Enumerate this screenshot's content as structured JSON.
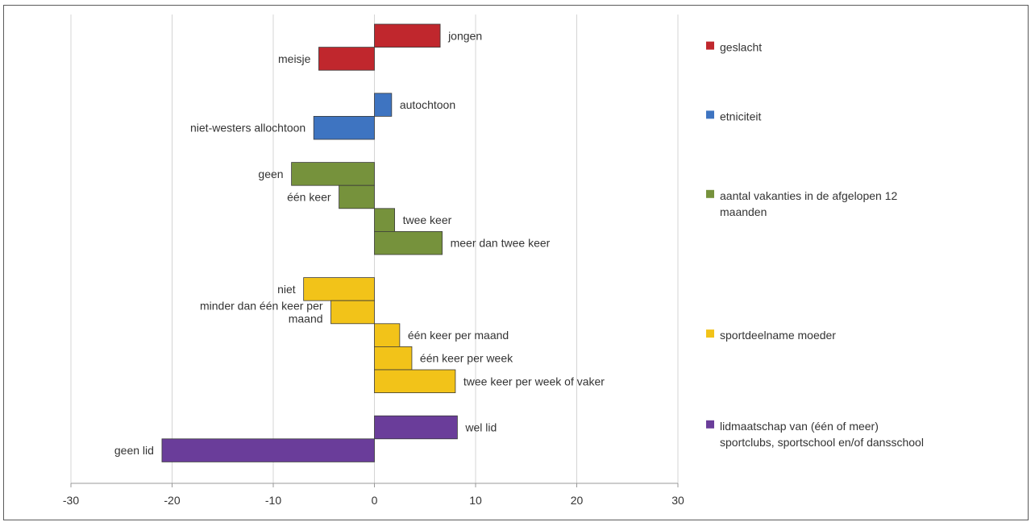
{
  "chart_data": {
    "type": "bar",
    "orientation": "horizontal",
    "xlim": [
      -30,
      30
    ],
    "x_ticks": [
      "-30",
      "-20",
      "-10",
      "0",
      "10",
      "20",
      "30"
    ],
    "grid": "vertical",
    "legend_position": "right",
    "groups": [
      {
        "name_lines": [
          "geslacht"
        ],
        "color": "#c0272d",
        "bars": [
          {
            "label_lines": [
              "jongen"
            ],
            "value": 6.5
          },
          {
            "label_lines": [
              "meisje"
            ],
            "value": -5.5
          }
        ]
      },
      {
        "name_lines": [
          "etniciteit"
        ],
        "color": "#3e74c1",
        "bars": [
          {
            "label_lines": [
              "autochtoon"
            ],
            "value": 1.7
          },
          {
            "label_lines": [
              "niet-westers allochtoon"
            ],
            "value": -6.0
          }
        ]
      },
      {
        "name_lines": [
          "aantal vakanties in de afgelopen 12",
          "maanden"
        ],
        "color": "#76923c",
        "bars": [
          {
            "label_lines": [
              "geen"
            ],
            "value": -8.2
          },
          {
            "label_lines": [
              "één keer"
            ],
            "value": -3.5
          },
          {
            "label_lines": [
              "twee keer"
            ],
            "value": 2.0
          },
          {
            "label_lines": [
              "meer dan twee keer"
            ],
            "value": 6.7
          }
        ]
      },
      {
        "name_lines": [
          "sportdeelname moeder"
        ],
        "color": "#f2c319",
        "bars": [
          {
            "label_lines": [
              "niet"
            ],
            "value": -7.0
          },
          {
            "label_lines": [
              "minder dan één keer per",
              "maand"
            ],
            "value": -4.3
          },
          {
            "label_lines": [
              "één keer per maand"
            ],
            "value": 2.5
          },
          {
            "label_lines": [
              "één keer per week"
            ],
            "value": 3.7
          },
          {
            "label_lines": [
              "twee keer per week of vaker"
            ],
            "value": 8.0
          }
        ]
      },
      {
        "name_lines": [
          "lidmaatschap van (één of meer)",
          "sportclubs, sportschool en/of dansschool"
        ],
        "color": "#6a3d9a",
        "bars": [
          {
            "label_lines": [
              "wel lid"
            ],
            "value": 8.2
          },
          {
            "label_lines": [
              "geen lid"
            ],
            "value": -21.0
          }
        ]
      }
    ]
  }
}
